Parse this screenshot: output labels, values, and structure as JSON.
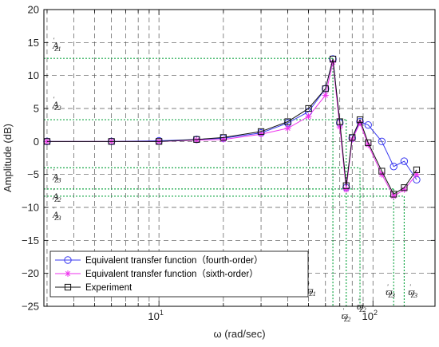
{
  "chart_data": {
    "type": "line",
    "xlabel": "ω (rad/sec)",
    "ylabel": "Amplitude (dB)",
    "x_scale": "log",
    "xlim": [
      2.9,
      195
    ],
    "ylim": [
      -25,
      20
    ],
    "x_tick_labels": [
      {
        "value": 10,
        "label": "10",
        "sup": "1"
      },
      {
        "value": 100,
        "label": "10",
        "sup": "2"
      }
    ],
    "y_ticks": [
      -25,
      -20,
      -15,
      -10,
      -5,
      0,
      5,
      10,
      15,
      20
    ],
    "grid": true,
    "legend_position": "bottom-left",
    "series": [
      {
        "name": "Equivalent transfer function（fourth-order）",
        "color": "#3a3af0",
        "marker": "circle",
        "x": [
          3,
          6,
          10,
          15,
          20,
          30,
          40,
          50,
          60,
          65,
          70,
          75,
          80,
          87,
          95,
          110,
          125,
          140,
          160
        ],
        "y": [
          0,
          0,
          0.1,
          0.3,
          0.5,
          1.3,
          2.8,
          4.5,
          8,
          12.5,
          2.8,
          -7,
          0.5,
          3,
          2.5,
          0,
          -3.8,
          -3,
          -5.8
        ]
      },
      {
        "name": "Equivalent transfer function（sixth-order）",
        "color": "#ee33ee",
        "marker": "star",
        "x": [
          3,
          6,
          10,
          15,
          20,
          30,
          40,
          50,
          60,
          65,
          70,
          75,
          80,
          87,
          95,
          110,
          125,
          140,
          160
        ],
        "y": [
          0,
          0,
          0,
          0.2,
          0.3,
          1.1,
          2.0,
          3.8,
          7.0,
          12.0,
          2.2,
          -7.3,
          0.3,
          2.8,
          -0.5,
          -5.0,
          -8.3,
          -7.3,
          -5.0
        ]
      },
      {
        "name": "Experiment",
        "color": "#111111",
        "marker": "square",
        "x": [
          3,
          6,
          10,
          15,
          20,
          30,
          40,
          50,
          60,
          65,
          70,
          75,
          80,
          87,
          95,
          110,
          125,
          140,
          160
        ],
        "y": [
          0,
          0,
          0,
          0.3,
          0.6,
          1.5,
          3.0,
          5.0,
          8.0,
          12.5,
          3.0,
          -6.7,
          0.6,
          3.3,
          -0.2,
          -4.5,
          -8.0,
          -7.0,
          -4.3
        ]
      }
    ],
    "reference_lines_y": [
      12.6,
      3.3,
      -4,
      -7.2,
      -8.3
    ],
    "reference_lines_x": [
      65,
      75,
      87,
      125,
      140
    ],
    "annotations_y": [
      {
        "text": "A",
        "sub": "Z1",
        "y": 12.6
      },
      {
        "text": "A",
        "sub": "Z2",
        "y": 3.3
      },
      {
        "text": "A",
        "sub": "Z3",
        "y": -4
      },
      {
        "text": "A",
        "sub": "Z2",
        "y": -7.2
      },
      {
        "text": "A",
        "sub": "Z3",
        "y": -8.3
      }
    ],
    "annotations_x": [
      {
        "text": "ϖ",
        "sub": "Z1",
        "x": 65
      },
      {
        "text": "ϖ",
        "sub": "Z2",
        "x": 75
      },
      {
        "text": "ϖ",
        "sub": "Z2",
        "x": 87
      },
      {
        "text": "ϖ",
        "sub": "Z3",
        "x": 125
      },
      {
        "text": "ϖ",
        "sub": "Z3",
        "x": 140
      }
    ]
  }
}
